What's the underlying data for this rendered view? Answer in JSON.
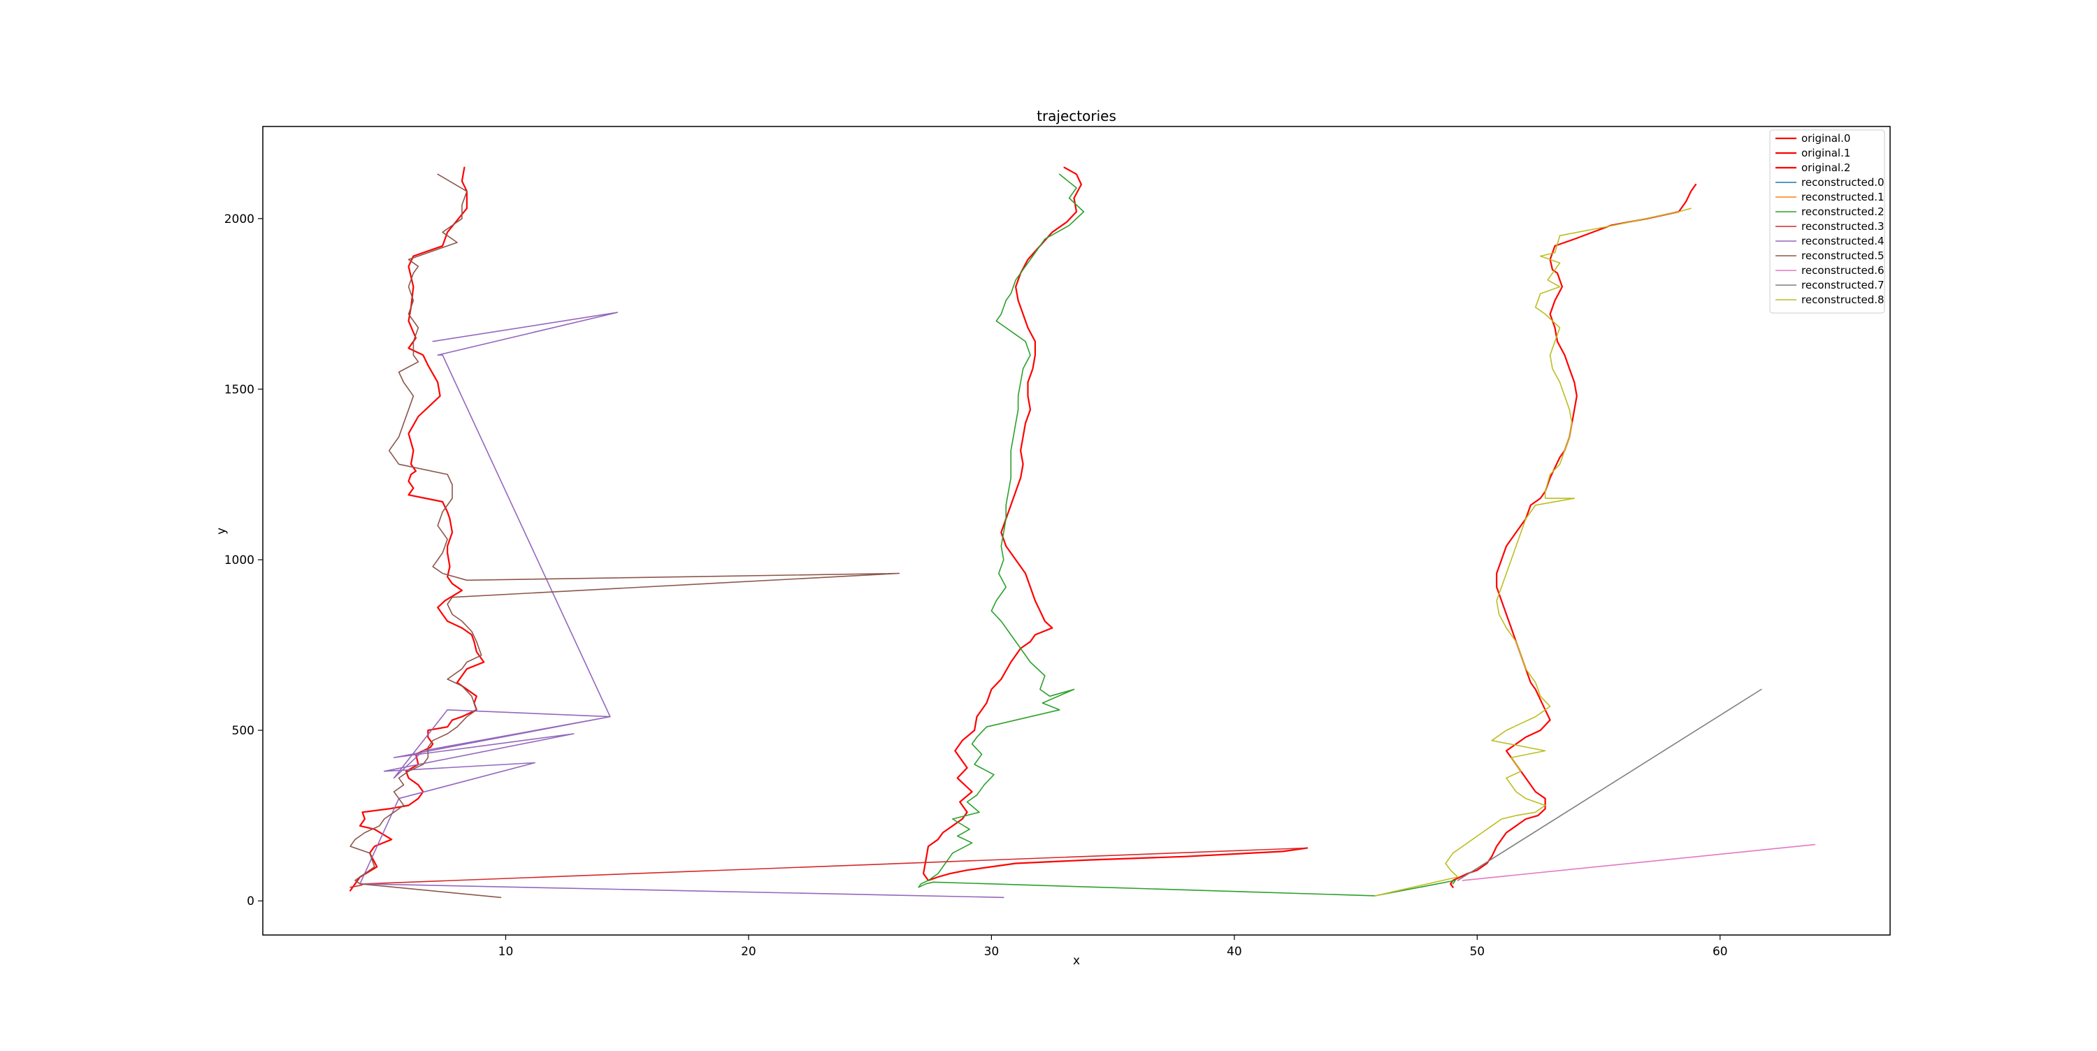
{
  "chart_data": {
    "type": "line",
    "title": "trajectories",
    "xlabel": "x",
    "ylabel": "y",
    "xlim": [
      0.0,
      67.0
    ],
    "ylim": [
      -100,
      2270
    ],
    "xticks": [
      10,
      20,
      30,
      40,
      50,
      60
    ],
    "yticks": [
      0,
      500,
      1000,
      1500,
      2000
    ],
    "grid": false,
    "legend_position": "top-right",
    "series": [
      {
        "name": "original.0",
        "color": "#ff0000",
        "width": 2.2,
        "x": [
          8.3,
          8.2,
          8.4,
          8.4,
          7.6,
          7.4,
          6.2,
          6.0,
          6.2,
          6.1,
          6.0,
          6.3,
          6.0,
          6.6,
          6.8,
          7.2,
          7.3,
          6.4,
          6.0,
          6.2,
          6.1,
          6.3,
          6.1,
          6.0,
          6.2,
          6.0,
          7.4,
          7.6,
          7.7,
          7.8,
          7.6,
          7.6,
          7.7,
          7.6,
          7.8,
          8.2,
          7.5,
          7.2,
          7.4,
          7.6,
          8.2,
          8.6,
          8.7,
          8.8,
          9.1,
          8.4,
          8.2,
          8.0,
          8.8,
          8.7,
          8.8,
          8.2,
          7.8,
          7.6,
          6.8,
          6.8,
          7.0,
          6.9,
          6.3,
          6.4,
          5.9,
          6.0,
          6.4,
          6.6,
          6.4,
          6.0,
          5.2,
          4.1,
          4.2,
          4.0,
          4.6,
          5.3,
          4.6,
          4.4,
          4.7,
          4.0,
          3.8,
          3.6
        ],
        "y": [
          2150,
          2110,
          2080,
          2030,
          1960,
          1920,
          1890,
          1860,
          1800,
          1740,
          1700,
          1650,
          1620,
          1600,
          1570,
          1520,
          1480,
          1420,
          1370,
          1320,
          1280,
          1260,
          1250,
          1230,
          1210,
          1190,
          1170,
          1140,
          1120,
          1080,
          1040,
          1020,
          980,
          950,
          930,
          910,
          880,
          860,
          840,
          820,
          800,
          780,
          760,
          730,
          700,
          680,
          660,
          640,
          600,
          580,
          560,
          540,
          530,
          510,
          500,
          480,
          460,
          450,
          430,
          400,
          380,
          360,
          340,
          320,
          300,
          280,
          270,
          260,
          240,
          220,
          210,
          180,
          160,
          140,
          100,
          70,
          50,
          30
        ]
      },
      {
        "name": "original.1",
        "color": "#ff0000",
        "width": 2.2,
        "x": [
          33.0,
          33.5,
          33.7,
          33.4,
          33.5,
          33.1,
          32.5,
          32.0,
          31.5,
          31.2,
          31.0,
          31.1,
          31.3,
          31.5,
          31.8,
          31.8,
          31.7,
          31.5,
          31.5,
          31.6,
          31.4,
          31.3,
          31.2,
          31.3,
          31.2,
          31.0,
          30.8,
          30.6,
          30.4,
          30.6,
          31.0,
          31.4,
          31.6,
          31.8,
          32.0,
          32.2,
          32.5,
          31.8,
          31.6,
          31.2,
          30.8,
          30.4,
          30.0,
          29.8,
          29.6,
          29.4,
          29.3,
          28.8,
          28.5,
          28.7,
          29.0,
          28.6,
          29.2,
          28.7,
          29.0,
          28.8,
          28.4,
          28.0,
          27.8,
          27.4,
          27.3,
          27.2,
          27.4,
          27.8,
          28.3,
          29.0,
          30.0,
          31.0,
          34.0,
          38.0,
          42.0,
          43.0
        ],
        "y": [
          2150,
          2130,
          2100,
          2060,
          2020,
          1990,
          1960,
          1920,
          1880,
          1840,
          1800,
          1760,
          1720,
          1680,
          1640,
          1600,
          1560,
          1520,
          1480,
          1440,
          1400,
          1360,
          1320,
          1280,
          1240,
          1200,
          1160,
          1120,
          1080,
          1040,
          1000,
          960,
          920,
          880,
          850,
          820,
          800,
          780,
          760,
          740,
          700,
          650,
          620,
          580,
          560,
          540,
          500,
          470,
          440,
          420,
          390,
          360,
          320,
          290,
          260,
          240,
          220,
          200,
          180,
          160,
          120,
          80,
          60,
          70,
          80,
          90,
          100,
          110,
          120,
          130,
          145,
          155
        ]
      },
      {
        "name": "original.2",
        "color": "#ff0000",
        "width": 2.2,
        "x": [
          59.0,
          58.8,
          58.6,
          58.3,
          57.0,
          55.5,
          54.0,
          53.2,
          53.0,
          53.1,
          53.3,
          53.5,
          53.2,
          53.0,
          53.2,
          53.3,
          53.6,
          53.8,
          54.0,
          54.1,
          54.0,
          53.9,
          53.8,
          53.6,
          53.4,
          53.2,
          53.0,
          52.8,
          52.6,
          52.2,
          52.0,
          51.6,
          51.2,
          51.0,
          50.8,
          50.8,
          51.0,
          51.2,
          51.4,
          51.6,
          51.8,
          52.0,
          52.2,
          52.4,
          52.6,
          52.8,
          53.0,
          52.6,
          52.0,
          51.6,
          51.2,
          51.4,
          51.6,
          51.8,
          52.0,
          52.4,
          52.8,
          52.8,
          52.5,
          52.0,
          51.8,
          51.6,
          51.4,
          51.2,
          51.0,
          50.8,
          50.6,
          50.4,
          50.0,
          49.6,
          49.3,
          49.0,
          48.9,
          49.0
        ],
        "y": [
          2100,
          2080,
          2050,
          2020,
          2000,
          1980,
          1940,
          1920,
          1880,
          1850,
          1840,
          1800,
          1760,
          1720,
          1680,
          1640,
          1600,
          1560,
          1520,
          1480,
          1440,
          1400,
          1360,
          1320,
          1300,
          1270,
          1240,
          1200,
          1180,
          1160,
          1120,
          1080,
          1040,
          1000,
          960,
          920,
          880,
          840,
          800,
          760,
          720,
          680,
          640,
          620,
          590,
          560,
          530,
          500,
          480,
          460,
          440,
          420,
          400,
          380,
          360,
          320,
          300,
          270,
          250,
          240,
          230,
          220,
          210,
          200,
          180,
          160,
          130,
          110,
          90,
          80,
          70,
          60,
          50,
          40
        ]
      },
      {
        "name": "reconstructed.2",
        "color": "#2ca02c",
        "width": 1.6,
        "x": [
          32.8,
          33.5,
          33.2,
          33.8,
          33.2,
          32.2,
          31.8,
          31.4,
          31.0,
          30.8,
          30.6,
          30.4,
          30.2,
          30.6,
          31.0,
          31.4,
          31.6,
          31.3,
          31.2,
          31.1,
          31.1,
          31.0,
          30.9,
          30.8,
          30.8,
          30.8,
          30.7,
          30.6,
          30.6,
          30.5,
          30.4,
          30.5,
          30.3,
          30.6,
          30.2,
          30.0,
          30.4,
          30.8,
          31.2,
          31.6,
          32.2,
          32.0,
          32.4,
          33.4,
          32.1,
          32.8,
          30.4,
          29.8,
          29.4,
          29.2,
          29.6,
          29.3,
          30.1,
          29.7,
          29.4,
          29.0,
          29.5,
          28.4,
          29.1,
          28.6,
          29.2,
          28.4,
          28.0,
          27.8,
          27.4,
          27.1,
          27.0,
          27.3,
          27.6,
          45.8,
          49.1,
          49.0
        ],
        "y": [
          2130,
          2090,
          2060,
          2020,
          1980,
          1940,
          1900,
          1860,
          1820,
          1780,
          1760,
          1720,
          1700,
          1680,
          1660,
          1640,
          1600,
          1560,
          1520,
          1480,
          1440,
          1400,
          1360,
          1320,
          1280,
          1240,
          1200,
          1160,
          1120,
          1080,
          1040,
          1000,
          960,
          920,
          880,
          850,
          820,
          780,
          740,
          700,
          660,
          620,
          600,
          620,
          580,
          560,
          520,
          510,
          480,
          460,
          430,
          400,
          370,
          340,
          310,
          290,
          260,
          240,
          210,
          190,
          170,
          140,
          100,
          80,
          60,
          50,
          40,
          50,
          55,
          15,
          60,
          50
        ]
      },
      {
        "name": "reconstructed.3",
        "color": "#d62728",
        "width": 1.6,
        "x": [
          3.6,
          4.0,
          4.2,
          43.0
        ],
        "y": [
          40,
          45,
          50,
          155
        ]
      },
      {
        "name": "reconstructed.4",
        "color": "#9467bd",
        "width": 1.6,
        "x": [
          7.0,
          14.6,
          7.2,
          7.4,
          14.3,
          7.6,
          5.4,
          6.6,
          14.3,
          5.4,
          12.8,
          5.0,
          11.2,
          5.6,
          4.0,
          30.5
        ],
        "y": [
          1640,
          1725,
          1600,
          1600,
          540,
          560,
          360,
          440,
          540,
          420,
          490,
          380,
          405,
          300,
          50,
          10
        ]
      },
      {
        "name": "reconstructed.5",
        "color": "#8c564b",
        "width": 1.6,
        "x": [
          7.2,
          8.4,
          8.2,
          8.2,
          7.4,
          8.0,
          7.2,
          6.0,
          6.4,
          6.2,
          6.0,
          6.2,
          6.0,
          6.4,
          6.2,
          6.2,
          6.4,
          5.6,
          5.8,
          6.2,
          6.0,
          5.8,
          5.6,
          5.2,
          5.6,
          7.6,
          7.8,
          7.8,
          7.4,
          7.2,
          7.6,
          7.4,
          7.2,
          7.0,
          7.4,
          8.4,
          26.2,
          7.8,
          7.6,
          7.8,
          8.2,
          8.6,
          8.8,
          9.0,
          8.4,
          8.2,
          7.6,
          8.2,
          8.6,
          8.8,
          8.4,
          8.0,
          7.6,
          7.0,
          6.8,
          6.8,
          6.6,
          6.0,
          5.6,
          5.8,
          5.4,
          5.6,
          5.8,
          5.4,
          5.0,
          4.8,
          4.2,
          3.8,
          3.6,
          4.4,
          4.6,
          4.2,
          3.8,
          4.0,
          9.8
        ],
        "y": [
          2130,
          2080,
          2040,
          2000,
          1960,
          1930,
          1910,
          1880,
          1860,
          1840,
          1800,
          1760,
          1720,
          1680,
          1640,
          1600,
          1580,
          1550,
          1520,
          1480,
          1440,
          1400,
          1360,
          1320,
          1280,
          1250,
          1220,
          1180,
          1140,
          1100,
          1060,
          1020,
          1000,
          980,
          960,
          940,
          960,
          890,
          870,
          840,
          820,
          790,
          760,
          720,
          700,
          680,
          650,
          630,
          600,
          560,
          540,
          510,
          490,
          470,
          450,
          420,
          400,
          380,
          360,
          340,
          320,
          300,
          280,
          260,
          240,
          220,
          200,
          180,
          160,
          140,
          100,
          80,
          60,
          50,
          10
        ]
      },
      {
        "name": "reconstructed.6",
        "color": "#e377c2",
        "width": 1.6,
        "x": [
          49.4,
          63.9
        ],
        "y": [
          60,
          165
        ]
      },
      {
        "name": "reconstructed.7",
        "color": "#7f7f7f",
        "width": 1.6,
        "x": [
          49.2,
          61.7
        ],
        "y": [
          60,
          620
        ]
      },
      {
        "name": "reconstructed.8",
        "color": "#bcbd22",
        "width": 1.6,
        "x": [
          58.8,
          58.3,
          55.6,
          53.4,
          53.2,
          52.6,
          53.4,
          52.9,
          53.4,
          52.6,
          52.4,
          52.8,
          53.4,
          53.2,
          53.0,
          53.1,
          53.4,
          53.6,
          53.8,
          53.9,
          53.8,
          53.6,
          53.4,
          53.0,
          52.8,
          52.8,
          54.0,
          52.4,
          52.0,
          51.8,
          51.6,
          51.4,
          51.2,
          51.0,
          50.8,
          50.9,
          51.2,
          51.6,
          51.8,
          52.0,
          52.4,
          52.6,
          53.0,
          52.4,
          51.8,
          51.2,
          50.6,
          52.8,
          51.4,
          51.8,
          51.2,
          51.6,
          52.0,
          52.8,
          52.4,
          51.6,
          51.0,
          50.6,
          50.2,
          49.8,
          49.4,
          49.0,
          48.7,
          48.9,
          49.2,
          45.8
        ],
        "y": [
          2030,
          2020,
          1980,
          1950,
          1900,
          1890,
          1870,
          1820,
          1800,
          1780,
          1740,
          1720,
          1680,
          1640,
          1600,
          1560,
          1520,
          1480,
          1440,
          1400,
          1360,
          1320,
          1280,
          1250,
          1200,
          1180,
          1180,
          1160,
          1120,
          1080,
          1040,
          1000,
          960,
          920,
          880,
          840,
          800,
          760,
          720,
          680,
          640,
          600,
          570,
          540,
          520,
          500,
          470,
          440,
          420,
          380,
          360,
          320,
          300,
          280,
          260,
          250,
          240,
          220,
          200,
          180,
          160,
          140,
          110,
          90,
          70,
          15
        ]
      }
    ],
    "legend": [
      {
        "name": "original.0",
        "color": "#ff0000",
        "width": 2.2
      },
      {
        "name": "original.1",
        "color": "#ff0000",
        "width": 2.2
      },
      {
        "name": "original.2",
        "color": "#ff0000",
        "width": 2.2
      },
      {
        "name": "reconstructed.0",
        "color": "#1f77b4",
        "width": 1.6
      },
      {
        "name": "reconstructed.1",
        "color": "#ff7f0e",
        "width": 1.6
      },
      {
        "name": "reconstructed.2",
        "color": "#2ca02c",
        "width": 1.6
      },
      {
        "name": "reconstructed.3",
        "color": "#d62728",
        "width": 1.6
      },
      {
        "name": "reconstructed.4",
        "color": "#9467bd",
        "width": 1.6
      },
      {
        "name": "reconstructed.5",
        "color": "#8c564b",
        "width": 1.6
      },
      {
        "name": "reconstructed.6",
        "color": "#e377c2",
        "width": 1.6
      },
      {
        "name": "reconstructed.7",
        "color": "#7f7f7f",
        "width": 1.6
      },
      {
        "name": "reconstructed.8",
        "color": "#bcbd22",
        "width": 1.6
      }
    ]
  }
}
